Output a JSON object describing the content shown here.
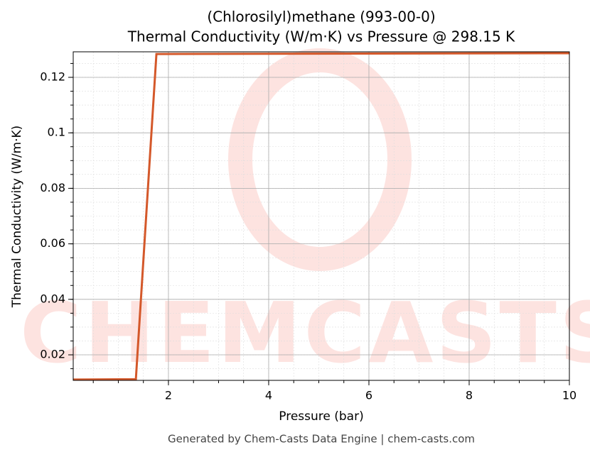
{
  "chart_data": {
    "type": "line",
    "title": "(Chlorosilyl)methane (993-00-0)",
    "subtitle": "Thermal Conductivity (W/m·K) vs Pressure @ 298.15 K",
    "x_label": "Pressure (bar)",
    "y_label": "Thermal Conductivity (W/m·K)",
    "footer": "Generated by Chem-Casts Data Engine | chem-casts.com",
    "watermark": "CHEMCASTS",
    "x": [
      0.1,
      1.35,
      1.76,
      10
    ],
    "series": [
      {
        "name": "Thermal Conductivity",
        "color": "#d4582a",
        "values": [
          0.0111,
          0.0112,
          0.1284,
          0.1287
        ]
      }
    ],
    "xlim": [
      0.1,
      10
    ],
    "xticks": [
      2,
      4,
      6,
      8,
      10
    ],
    "ylim": [
      0.0108,
      0.1292
    ],
    "yticks": [
      0.02,
      0.04,
      0.06,
      0.08,
      0.1,
      0.12
    ],
    "grid": true,
    "minor_grid": true
  }
}
